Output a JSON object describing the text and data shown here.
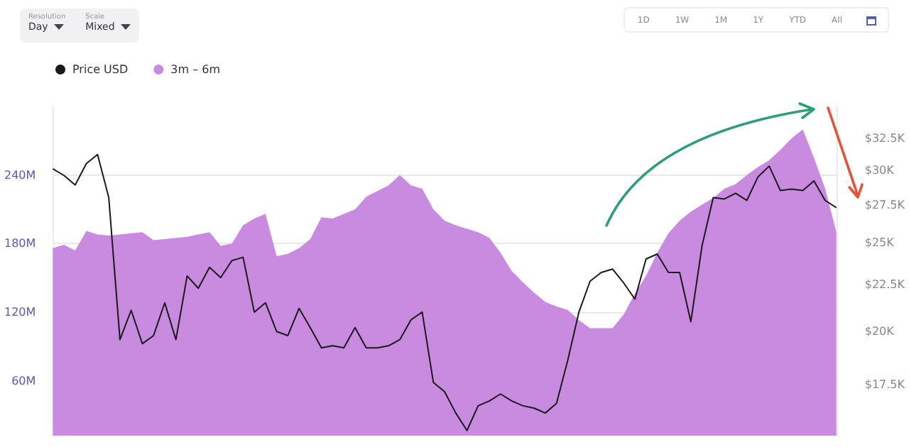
{
  "chart_data": {
    "type": "line",
    "categories": [
      null,
      null,
      null,
      null,
      null,
      null,
      null,
      null,
      null,
      null,
      null,
      null,
      null,
      null,
      null,
      null,
      null,
      null,
      null,
      null,
      null,
      null,
      null,
      null,
      null,
      null,
      null,
      null,
      null,
      null,
      null,
      null,
      null,
      null,
      null,
      null,
      null,
      null,
      null,
      null,
      null,
      null,
      null,
      null,
      null,
      null,
      null,
      null,
      null,
      null,
      null,
      null,
      null,
      null,
      null,
      null,
      null,
      null,
      null,
      null,
      null,
      null,
      null,
      null,
      null,
      null,
      null,
      null,
      null,
      null,
      null
    ],
    "series": [
      {
        "name": "Price USD",
        "type": "line",
        "axis": "y2",
        "color": "#1a1a1a",
        "values": [
          30.1,
          29.6,
          28.9,
          30.5,
          31.2,
          28.0,
          19.6,
          21.1,
          19.4,
          19.8,
          21.5,
          19.6,
          23.0,
          22.3,
          23.5,
          22.9,
          23.9,
          24.1,
          21.0,
          21.5,
          20.0,
          19.8,
          21.2,
          20.2,
          19.2,
          19.3,
          19.2,
          20.2,
          19.2,
          19.2,
          19.3,
          19.6,
          20.6,
          21.0,
          17.6,
          17.2,
          16.3,
          15.6,
          16.6,
          16.8,
          17.1,
          16.8,
          16.6,
          16.5,
          16.3,
          16.7,
          18.6,
          21.0,
          22.7,
          23.2,
          23.4,
          22.6,
          21.7,
          24.0,
          24.3,
          23.2,
          23.2,
          20.5,
          24.8,
          28.0,
          27.9,
          28.3,
          27.8,
          29.5,
          30.3,
          28.5,
          28.6,
          28.5,
          29.2,
          27.8,
          27.3
        ]
      },
      {
        "name": "3m – 6m",
        "type": "area",
        "color": "#c98be0",
        "values": [
          176,
          179,
          174,
          191,
          188,
          187,
          188,
          189,
          190,
          183,
          184,
          185,
          186,
          188,
          190,
          178,
          180,
          196,
          202,
          206,
          169,
          171,
          176,
          184,
          203,
          202,
          206,
          210,
          221,
          226,
          231,
          240,
          231,
          228,
          210,
          200,
          196,
          193,
          190,
          185,
          172,
          156,
          146,
          137,
          129,
          125,
          122,
          113,
          106,
          106,
          106,
          118,
          136,
          152,
          172,
          189,
          200,
          208,
          214,
          220,
          228,
          232,
          240,
          247,
          253,
          262,
          272,
          280,
          255,
          228,
          190
        ]
      }
    ],
    "ylim": [
      12,
      300
    ],
    "yticks": [
      {
        "value": 60,
        "label": "60M"
      },
      {
        "value": 120,
        "label": "120M"
      },
      {
        "value": 180,
        "label": "180M"
      },
      {
        "value": 240,
        "label": "240M"
      }
    ],
    "y2lim": [
      15.4,
      35.2
    ],
    "y2ticks": [
      {
        "value": 17.5,
        "label": "$17.5K"
      },
      {
        "value": 20,
        "label": "$20K"
      },
      {
        "value": 22.5,
        "label": "$22.5K"
      },
      {
        "value": 25,
        "label": "$25K"
      },
      {
        "value": 27.5,
        "label": "$27.5K"
      },
      {
        "value": 30,
        "label": "$30K"
      },
      {
        "value": 32.5,
        "label": "$32.5K"
      }
    ],
    "log": "y2",
    "grid": "y",
    "legend": "top left",
    "marker": "none",
    "annotations": [
      "Resolution",
      "Day",
      "Scale",
      "Mixed",
      "1D",
      "1W",
      "1M",
      "1Y",
      "YTD",
      "All"
    ]
  }
}
